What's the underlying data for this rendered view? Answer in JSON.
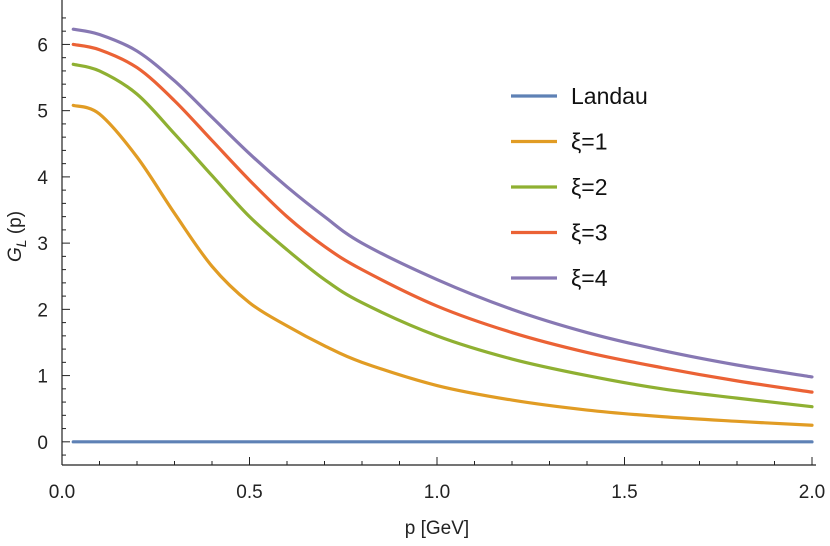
{
  "chart_data": {
    "type": "line",
    "title": "",
    "xlabel": "p [GeV]",
    "ylabel": "G_L (p)",
    "ylabel_main": "G",
    "ylabel_sub": "L",
    "ylabel_rest": " (p)",
    "xlim": [
      0,
      2.0
    ],
    "ylim": [
      -0.35,
      6.55
    ],
    "xticks": [
      {
        "value": 0.0,
        "label": "0.0"
      },
      {
        "value": 0.5,
        "label": "0.5"
      },
      {
        "value": 1.0,
        "label": "1.0"
      },
      {
        "value": 1.5,
        "label": "1.5"
      },
      {
        "value": 2.0,
        "label": "2.0"
      }
    ],
    "yticks": [
      {
        "value": 0,
        "label": "0"
      },
      {
        "value": 1,
        "label": "1"
      },
      {
        "value": 2,
        "label": "2"
      },
      {
        "value": 3,
        "label": "3"
      },
      {
        "value": 4,
        "label": "4"
      },
      {
        "value": 5,
        "label": "5"
      },
      {
        "value": 6,
        "label": "6"
      }
    ],
    "grid": false,
    "legend_position": "right",
    "x": [
      0.03,
      0.1,
      0.2,
      0.3,
      0.4,
      0.5,
      0.6,
      0.7,
      0.8,
      1.0,
      1.2,
      1.4,
      1.6,
      1.8,
      2.0
    ],
    "series": [
      {
        "name": "Landau",
        "color": "#5e81b5",
        "values": [
          0,
          0,
          0,
          0,
          0,
          0,
          0,
          0,
          0,
          0,
          0,
          0,
          0,
          0,
          0
        ]
      },
      {
        "name": "ξ=1",
        "color": "#e19c24",
        "values": [
          5.08,
          4.95,
          4.3,
          3.45,
          2.65,
          2.1,
          1.75,
          1.45,
          1.2,
          0.85,
          0.63,
          0.48,
          0.38,
          0.31,
          0.25
        ]
      },
      {
        "name": "ξ=2",
        "color": "#8fb032",
        "values": [
          5.7,
          5.6,
          5.25,
          4.65,
          4.02,
          3.4,
          2.9,
          2.45,
          2.1,
          1.6,
          1.25,
          1.0,
          0.8,
          0.66,
          0.53
        ]
      },
      {
        "name": "ξ=3",
        "color": "#eb6235",
        "values": [
          6.0,
          5.92,
          5.65,
          5.15,
          4.55,
          3.95,
          3.4,
          2.95,
          2.6,
          2.05,
          1.65,
          1.35,
          1.12,
          0.92,
          0.75
        ]
      },
      {
        "name": "ξ=4",
        "color": "#8778b3",
        "values": [
          6.23,
          6.15,
          5.9,
          5.45,
          4.9,
          4.35,
          3.85,
          3.4,
          3.0,
          2.45,
          2.0,
          1.65,
          1.38,
          1.16,
          0.98
        ]
      }
    ]
  }
}
